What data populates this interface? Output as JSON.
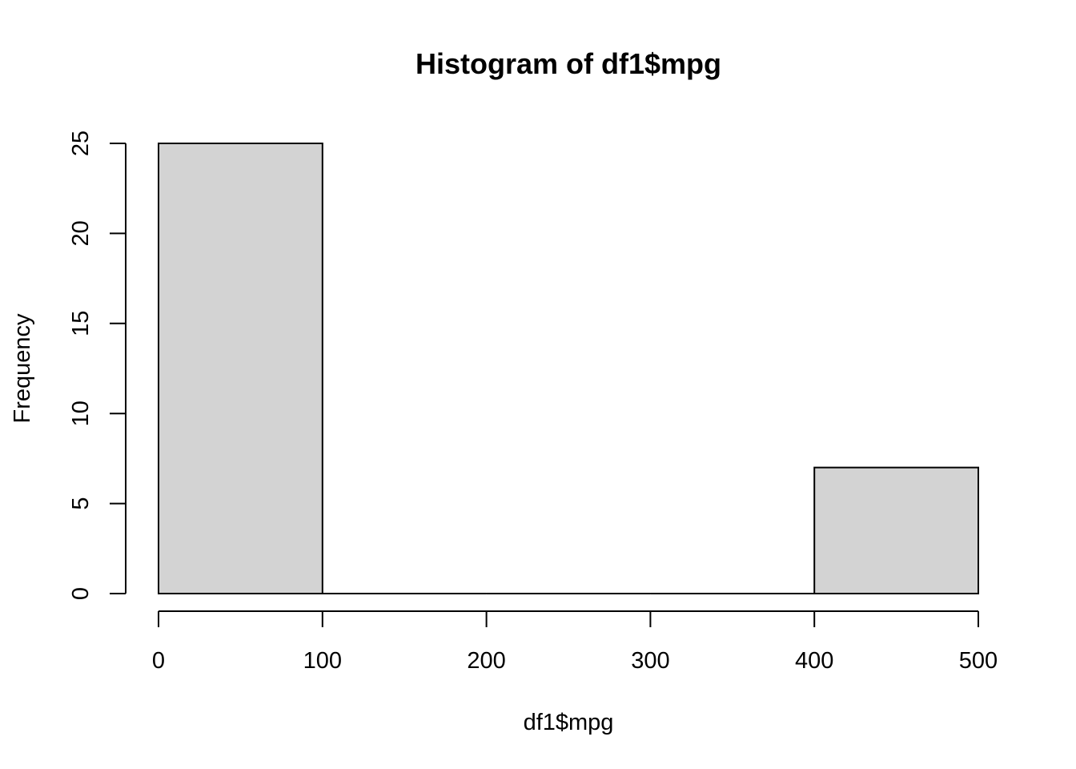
{
  "chart_data": {
    "type": "bar",
    "title": "Histogram of df1$mpg",
    "xlabel": "df1$mpg",
    "ylabel": "Frequency",
    "bins": [
      {
        "start": 0,
        "end": 100,
        "count": 25
      },
      {
        "start": 100,
        "end": 200,
        "count": 0
      },
      {
        "start": 200,
        "end": 300,
        "count": 0
      },
      {
        "start": 300,
        "end": 400,
        "count": 0
      },
      {
        "start": 400,
        "end": 500,
        "count": 7
      }
    ],
    "xlim": [
      0,
      500
    ],
    "ylim": [
      0,
      25
    ],
    "x_ticks": [
      "0",
      "100",
      "200",
      "300",
      "400",
      "500"
    ],
    "y_ticks": [
      "0",
      "5",
      "10",
      "15",
      "20",
      "25"
    ],
    "grid": false,
    "legend": "none",
    "bar_fill": "#d3d3d3",
    "bar_stroke": "#000000"
  }
}
